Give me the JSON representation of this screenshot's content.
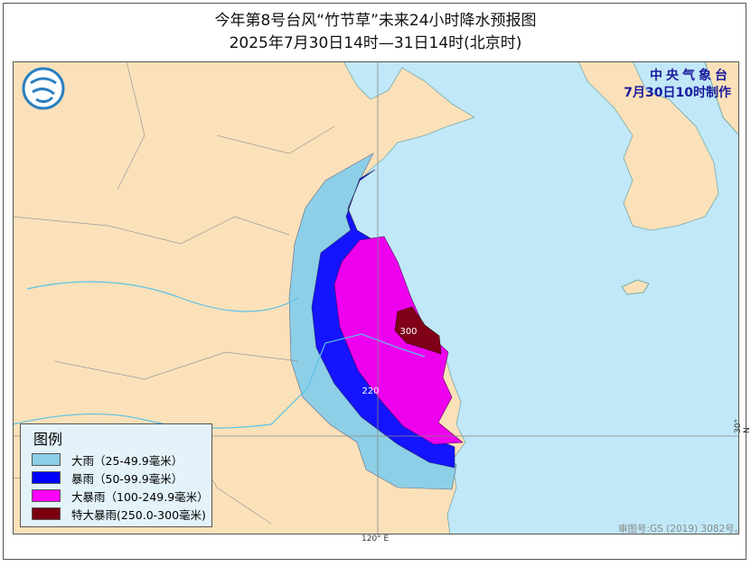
{
  "title": "今年第8号台风“竹节草”未来24小时降水预报图",
  "subtitle": "2025年7月30日14时—31日14时(北京时)",
  "issuer": {
    "name": "中央气象台",
    "time": "7月30日10时制作"
  },
  "legend": {
    "title": "图例",
    "items": [
      {
        "label": "大雨（25-49.9毫米）",
        "color": "#8ccfe6"
      },
      {
        "label": "暴雨（50-99.9毫米）",
        "color": "#0000ff"
      },
      {
        "label": "大暴雨（100-249.9毫米）",
        "color": "#ff00ff"
      },
      {
        "label": "特大暴雨(250.0-300毫米)",
        "color": "#7a0010"
      }
    ]
  },
  "annotations": {
    "max_label": "300",
    "point_label": "220"
  },
  "axes": {
    "longitude_label": "120° E",
    "latitude_label": "30° N"
  },
  "approval": "审图号:GS (2019) 3082号。",
  "colors": {
    "land": "#fbe1b9",
    "sea": "#c1e8f8"
  }
}
